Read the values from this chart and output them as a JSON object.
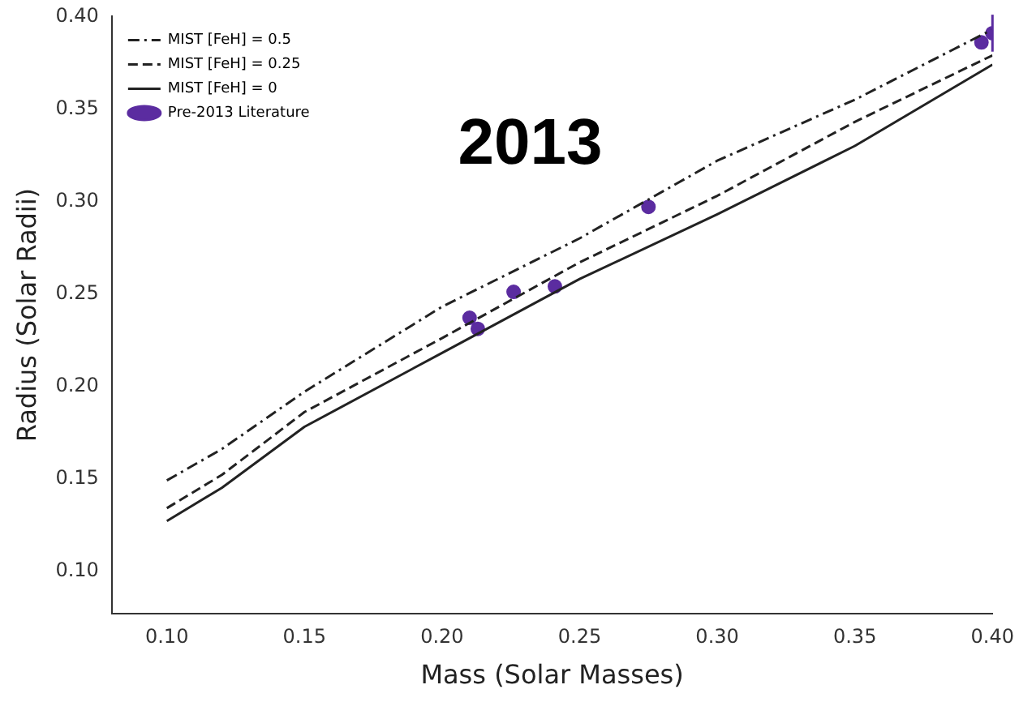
{
  "chart_data": {
    "type": "line",
    "xlabel": "Mass (Solar Masses)",
    "ylabel": "Radius (Solar Radii)",
    "annotations": [
      "2013"
    ],
    "xlim": [
      0.08,
      0.4
    ],
    "xticks": [
      {
        "value": 0.1,
        "label": "0.10"
      },
      {
        "value": 0.15,
        "label": "0.15"
      },
      {
        "value": 0.2,
        "label": "0.20"
      },
      {
        "value": 0.25,
        "label": "0.25"
      },
      {
        "value": 0.3,
        "label": "0.30"
      },
      {
        "value": 0.35,
        "label": "0.35"
      },
      {
        "value": 0.4,
        "label": "0.40"
      }
    ],
    "ylim": [
      0.077,
      0.4
    ],
    "yticks": [
      {
        "value": 0.1,
        "label": "0.10"
      },
      {
        "value": 0.15,
        "label": "0.15"
      },
      {
        "value": 0.2,
        "label": "0.20"
      },
      {
        "value": 0.25,
        "label": "0.25"
      },
      {
        "value": 0.3,
        "label": "0.30"
      },
      {
        "value": 0.35,
        "label": "0.35"
      },
      {
        "value": 0.4,
        "label": "0.40"
      }
    ],
    "grid": false,
    "legend": "top left",
    "series": [
      {
        "name": "MIST [FeH] = 0.5",
        "line_style": "dashdot",
        "marker": "none",
        "color": "#222222",
        "x": [
          0.1,
          0.12,
          0.15,
          0.2,
          0.25,
          0.3,
          0.35,
          0.4
        ],
        "values": [
          0.149,
          0.166,
          0.197,
          0.243,
          0.28,
          0.322,
          0.355,
          0.393
        ]
      },
      {
        "name": "MIST [FeH] = 0.25",
        "line_style": "dashed",
        "marker": "none",
        "color": "#222222",
        "x": [
          0.1,
          0.12,
          0.15,
          0.2,
          0.25,
          0.3,
          0.35,
          0.4
        ],
        "values": [
          0.134,
          0.152,
          0.186,
          0.226,
          0.267,
          0.303,
          0.343,
          0.379
        ]
      },
      {
        "name": "MIST [FeH] = 0",
        "line_style": "solid",
        "marker": "none",
        "color": "#222222",
        "x": [
          0.1,
          0.12,
          0.15,
          0.2,
          0.25,
          0.3,
          0.35,
          0.4
        ],
        "values": [
          0.127,
          0.145,
          0.178,
          0.218,
          0.258,
          0.293,
          0.33,
          0.374
        ]
      },
      {
        "name": "Pre-2013 Literature",
        "type": "scatter",
        "marker": "circle",
        "color": "#5b2ca0",
        "x": [
          0.21,
          0.213,
          0.226,
          0.241,
          0.275,
          0.396,
          0.4
        ],
        "values": [
          0.237,
          0.231,
          0.251,
          0.254,
          0.297,
          0.386,
          0.391
        ],
        "errors": [
          null,
          null,
          null,
          null,
          null,
          null,
          0.01
        ]
      }
    ]
  }
}
